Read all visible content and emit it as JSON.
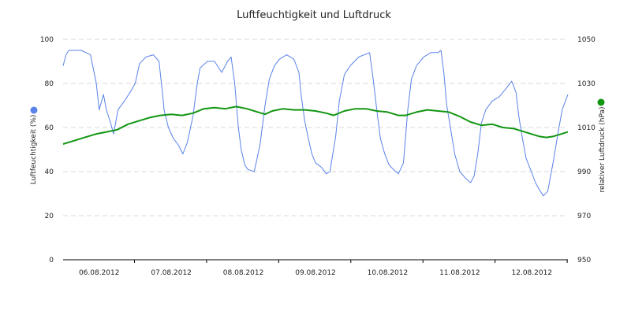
{
  "chart_data": {
    "type": "line",
    "title": "Luftfeuchtigkeit und Luftdruck",
    "x_tick_labels": [
      "06.08.2012",
      "07.08.2012",
      "08.08.2012",
      "09.08.2012",
      "10.08.2012",
      "11.08.2012",
      "12.08.2012"
    ],
    "x_range_days": [
      0,
      7
    ],
    "grid": "horizontal dashed",
    "y_left": {
      "label": "Luftfeuchtigkeit (%)",
      "range": [
        0,
        100
      ],
      "ticks": [
        "0",
        "20",
        "40",
        "60",
        "80",
        "100"
      ],
      "legend_color": "#5a82e8"
    },
    "y_right": {
      "label": "relativer Luftdruck (hPa)",
      "range": [
        950,
        1050
      ],
      "ticks": [
        "950",
        "970",
        "990",
        "1010",
        "1030",
        "1050"
      ],
      "legend_color": "#129612"
    },
    "series": [
      {
        "axis": "left",
        "color": "#5a82e8",
        "points": [
          [
            0.0,
            88
          ],
          [
            0.04,
            93
          ],
          [
            0.08,
            95
          ],
          [
            0.25,
            95
          ],
          [
            0.38,
            93
          ],
          [
            0.46,
            80
          ],
          [
            0.5,
            68
          ],
          [
            0.56,
            75
          ],
          [
            0.6,
            68
          ],
          [
            0.66,
            62
          ],
          [
            0.7,
            57
          ],
          [
            0.76,
            68
          ],
          [
            0.85,
            72
          ],
          [
            0.93,
            76
          ],
          [
            1.0,
            80
          ],
          [
            1.06,
            89
          ],
          [
            1.15,
            92
          ],
          [
            1.25,
            93
          ],
          [
            1.33,
            90
          ],
          [
            1.38,
            75
          ],
          [
            1.4,
            68
          ],
          [
            1.46,
            60
          ],
          [
            1.53,
            55
          ],
          [
            1.6,
            52
          ],
          [
            1.66,
            48
          ],
          [
            1.72,
            53
          ],
          [
            1.8,
            65
          ],
          [
            1.86,
            80
          ],
          [
            1.9,
            87
          ],
          [
            2.0,
            90
          ],
          [
            2.1,
            90
          ],
          [
            2.2,
            85
          ],
          [
            2.28,
            90
          ],
          [
            2.33,
            92
          ],
          [
            2.38,
            80
          ],
          [
            2.43,
            60
          ],
          [
            2.47,
            50
          ],
          [
            2.52,
            43
          ],
          [
            2.56,
            41
          ],
          [
            2.65,
            40
          ],
          [
            2.73,
            52
          ],
          [
            2.8,
            70
          ],
          [
            2.86,
            82
          ],
          [
            2.93,
            88
          ],
          [
            3.0,
            91
          ],
          [
            3.1,
            93
          ],
          [
            3.2,
            91
          ],
          [
            3.27,
            85
          ],
          [
            3.3,
            75
          ],
          [
            3.35,
            63
          ],
          [
            3.4,
            55
          ],
          [
            3.45,
            48
          ],
          [
            3.5,
            44
          ],
          [
            3.58,
            42
          ],
          [
            3.65,
            39
          ],
          [
            3.7,
            40
          ],
          [
            3.78,
            56
          ],
          [
            3.83,
            72
          ],
          [
            3.9,
            84
          ],
          [
            3.98,
            88
          ],
          [
            4.1,
            92
          ],
          [
            4.25,
            94
          ],
          [
            4.3,
            82
          ],
          [
            4.35,
            68
          ],
          [
            4.4,
            55
          ],
          [
            4.46,
            48
          ],
          [
            4.52,
            43
          ],
          [
            4.58,
            41
          ],
          [
            4.65,
            39
          ],
          [
            4.72,
            44
          ],
          [
            4.78,
            68
          ],
          [
            4.83,
            82
          ],
          [
            4.9,
            88
          ],
          [
            5.0,
            92
          ],
          [
            5.1,
            94
          ],
          [
            5.2,
            94
          ],
          [
            5.24,
            95
          ],
          [
            5.28,
            85
          ],
          [
            5.32,
            70
          ],
          [
            5.38,
            58
          ],
          [
            5.43,
            48
          ],
          [
            5.5,
            40
          ],
          [
            5.58,
            37
          ],
          [
            5.65,
            35
          ],
          [
            5.7,
            38
          ],
          [
            5.75,
            48
          ],
          [
            5.8,
            62
          ],
          [
            5.86,
            68
          ],
          [
            5.95,
            72
          ],
          [
            6.05,
            74
          ],
          [
            6.15,
            78
          ],
          [
            6.22,
            81
          ],
          [
            6.28,
            76
          ],
          [
            6.32,
            65
          ],
          [
            6.37,
            55
          ],
          [
            6.42,
            46
          ],
          [
            6.48,
            41
          ],
          [
            6.55,
            35
          ],
          [
            6.6,
            32
          ],
          [
            6.66,
            29
          ],
          [
            6.72,
            31
          ],
          [
            6.8,
            45
          ],
          [
            6.86,
            57
          ],
          [
            6.92,
            68
          ],
          [
            7.0,
            75
          ]
        ]
      },
      {
        "axis": "right",
        "color": "#129612",
        "points": [
          [
            0.0,
            1002.5
          ],
          [
            0.15,
            1004
          ],
          [
            0.3,
            1005.5
          ],
          [
            0.45,
            1007
          ],
          [
            0.6,
            1008
          ],
          [
            0.75,
            1009
          ],
          [
            0.9,
            1011.5
          ],
          [
            1.05,
            1013
          ],
          [
            1.2,
            1014.5
          ],
          [
            1.35,
            1015.5
          ],
          [
            1.5,
            1016
          ],
          [
            1.65,
            1015.5
          ],
          [
            1.8,
            1016.5
          ],
          [
            1.95,
            1018.5
          ],
          [
            2.1,
            1019
          ],
          [
            2.25,
            1018.5
          ],
          [
            2.4,
            1019.5
          ],
          [
            2.55,
            1018.5
          ],
          [
            2.7,
            1017
          ],
          [
            2.8,
            1016
          ],
          [
            2.9,
            1017.5
          ],
          [
            3.05,
            1018.5
          ],
          [
            3.2,
            1018
          ],
          [
            3.35,
            1018
          ],
          [
            3.5,
            1017.5
          ],
          [
            3.65,
            1016.5
          ],
          [
            3.75,
            1015.5
          ],
          [
            3.9,
            1017.5
          ],
          [
            4.05,
            1018.5
          ],
          [
            4.2,
            1018.5
          ],
          [
            4.35,
            1017.5
          ],
          [
            4.5,
            1017
          ],
          [
            4.65,
            1015.5
          ],
          [
            4.75,
            1015.5
          ],
          [
            4.9,
            1017
          ],
          [
            5.05,
            1018
          ],
          [
            5.2,
            1017.5
          ],
          [
            5.35,
            1017
          ],
          [
            5.5,
            1015
          ],
          [
            5.65,
            1012.5
          ],
          [
            5.8,
            1011
          ],
          [
            5.95,
            1011.5
          ],
          [
            6.1,
            1010
          ],
          [
            6.25,
            1009.5
          ],
          [
            6.4,
            1008
          ],
          [
            6.5,
            1007
          ],
          [
            6.6,
            1006
          ],
          [
            6.7,
            1005.5
          ],
          [
            6.8,
            1006
          ],
          [
            6.9,
            1007
          ],
          [
            7.0,
            1008
          ]
        ]
      }
    ]
  }
}
